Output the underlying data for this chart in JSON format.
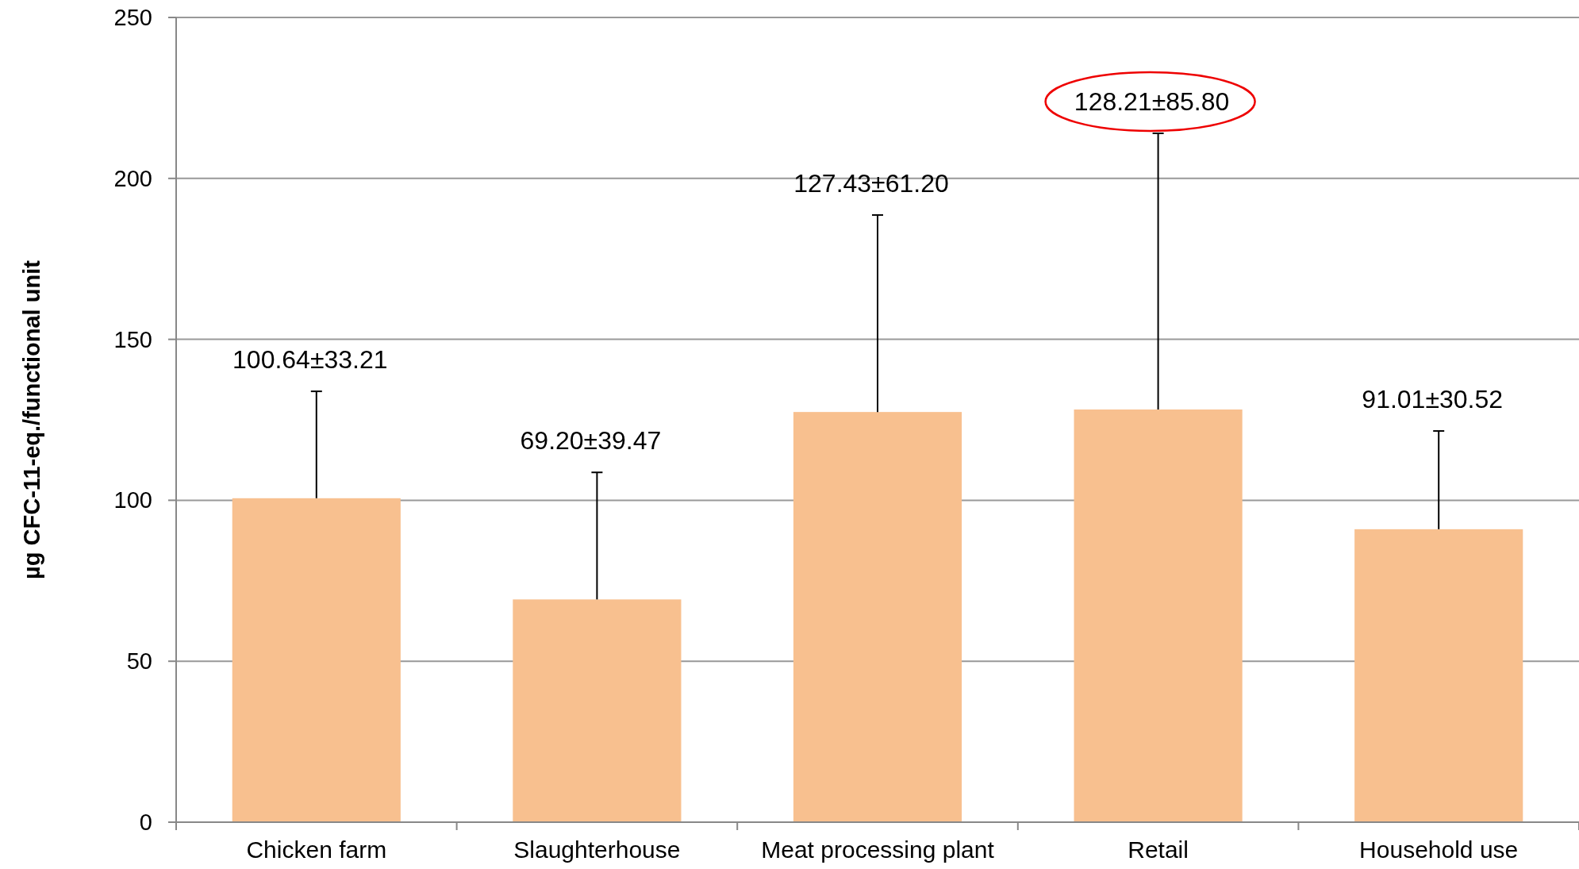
{
  "chart_data": {
    "type": "bar",
    "ylabel": "µg CFC-11-eq./functional unit",
    "categories": [
      "Chicken farm",
      "Slaughterhouse",
      "Meat processing plant",
      "Retail",
      "Household use"
    ],
    "values": [
      100.64,
      69.2,
      127.43,
      128.21,
      91.01
    ],
    "errors": [
      [
        100.64,
        133.85
      ],
      [
        69.2,
        108.67
      ],
      [
        127.43,
        188.63
      ],
      [
        128.21,
        214.01
      ],
      [
        91.01,
        121.53
      ]
    ],
    "color": "#f8c08f",
    "ylim": [
      0,
      250
    ],
    "yticks": [
      0,
      50,
      100,
      150,
      200,
      250
    ],
    "grid": "y",
    "annotations": [
      {
        "text": "100.64±33.21",
        "x": "Chicken farm",
        "y": 133.85
      },
      {
        "text": "69.20±39.47",
        "x": "Slaughterhouse",
        "y": 108.67
      },
      {
        "text": "127.43±61.20",
        "x": "Meat processing plant",
        "y": 188.63
      },
      {
        "text": "128.21±85.80",
        "x": "Retail",
        "y": 214.01
      },
      {
        "text": "91.01±30.52",
        "x": "Household use",
        "y": 121.53
      }
    ]
  }
}
